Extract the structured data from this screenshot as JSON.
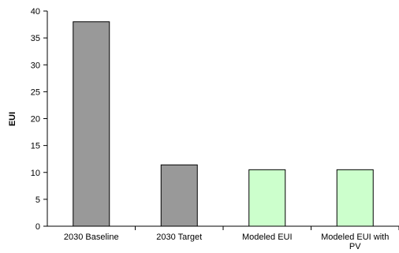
{
  "chart_data": {
    "type": "bar",
    "title": "",
    "xlabel": "",
    "ylabel": "EUI",
    "ylim": [
      0,
      40
    ],
    "yticks": [
      0,
      5,
      10,
      15,
      20,
      25,
      30,
      35,
      40
    ],
    "categories": [
      [
        "2030 Baseline"
      ],
      [
        "2030 Target"
      ],
      [
        "Modeled EUI"
      ],
      [
        "Modeled EUI with",
        "PV"
      ]
    ],
    "values": [
      38,
      11.4,
      10.5,
      10.5
    ],
    "bar_colors": [
      "#999999",
      "#999999",
      "#ccffcc",
      "#ccffcc"
    ],
    "bar_edge_color": "#000000",
    "grid": false,
    "legend": "none"
  }
}
